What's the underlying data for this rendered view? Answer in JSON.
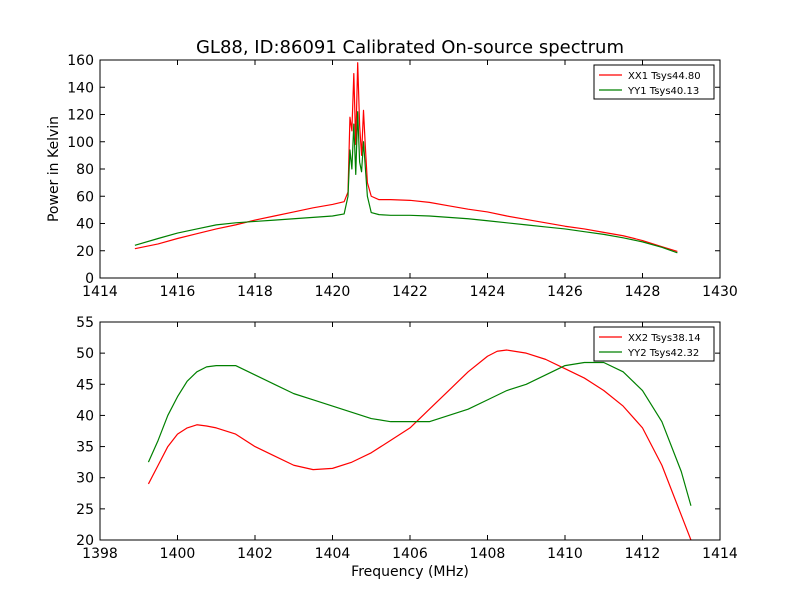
{
  "colors": {
    "xx": "#ff0000",
    "yy": "#008000",
    "axis": "#000000",
    "background": "#ffffff"
  },
  "chart_data": [
    {
      "type": "line",
      "title": "GL88, ID:86091 Calibrated On-source spectrum",
      "xlabel": "",
      "ylabel": "Power in Kelvin",
      "xlim": [
        1414,
        1430
      ],
      "ylim": [
        0,
        160
      ],
      "xticks": [
        "1414",
        "1416",
        "1418",
        "1420",
        "1422",
        "1424",
        "1426",
        "1428",
        "1430"
      ],
      "yticks": [
        "0",
        "20",
        "40",
        "60",
        "80",
        "100",
        "120",
        "140",
        "160"
      ],
      "grid": false,
      "legend_position": "top-right",
      "series": [
        {
          "name": "XX1 Tsys44.80",
          "color": "#ff0000",
          "points": [
            [
              1414.9,
              21.5
            ],
            [
              1415.5,
              25
            ],
            [
              1416,
              29
            ],
            [
              1416.5,
              32.5
            ],
            [
              1417,
              36
            ],
            [
              1417.5,
              39
            ],
            [
              1418,
              42.5
            ],
            [
              1418.5,
              45.5
            ],
            [
              1419,
              48.5
            ],
            [
              1419.5,
              51.5
            ],
            [
              1420,
              54
            ],
            [
              1420.3,
              56
            ],
            [
              1420.4,
              63
            ],
            [
              1420.45,
              118
            ],
            [
              1420.5,
              108
            ],
            [
              1420.55,
              150
            ],
            [
              1420.6,
              98
            ],
            [
              1420.65,
              158
            ],
            [
              1420.7,
              112
            ],
            [
              1420.75,
              90
            ],
            [
              1420.8,
              123
            ],
            [
              1420.85,
              95
            ],
            [
              1420.9,
              70
            ],
            [
              1421,
              60
            ],
            [
              1421.2,
              57.5
            ],
            [
              1421.5,
              57.5
            ],
            [
              1422,
              57
            ],
            [
              1422.5,
              55.5
            ],
            [
              1423,
              53
            ],
            [
              1423.5,
              50.5
            ],
            [
              1424,
              48.5
            ],
            [
              1424.5,
              45.5
            ],
            [
              1425,
              43
            ],
            [
              1425.5,
              40.5
            ],
            [
              1426,
              38
            ],
            [
              1426.5,
              36
            ],
            [
              1427,
              33.5
            ],
            [
              1427.5,
              31
            ],
            [
              1428,
              27.5
            ],
            [
              1428.5,
              23
            ],
            [
              1428.9,
              19.5
            ]
          ]
        },
        {
          "name": "YY1 Tsys40.13",
          "color": "#008000",
          "points": [
            [
              1414.9,
              24
            ],
            [
              1415.5,
              29
            ],
            [
              1416,
              33
            ],
            [
              1416.5,
              36
            ],
            [
              1417,
              39
            ],
            [
              1417.5,
              40.5
            ],
            [
              1418,
              41.5
            ],
            [
              1418.5,
              42.5
            ],
            [
              1419,
              43.5
            ],
            [
              1419.5,
              44.5
            ],
            [
              1420,
              45.5
            ],
            [
              1420.3,
              47
            ],
            [
              1420.4,
              60
            ],
            [
              1420.45,
              94
            ],
            [
              1420.5,
              80
            ],
            [
              1420.55,
              113
            ],
            [
              1420.6,
              76
            ],
            [
              1420.65,
              122
            ],
            [
              1420.7,
              85
            ],
            [
              1420.75,
              78
            ],
            [
              1420.8,
              100
            ],
            [
              1420.85,
              80
            ],
            [
              1420.9,
              60
            ],
            [
              1421,
              48
            ],
            [
              1421.2,
              46.5
            ],
            [
              1421.5,
              46
            ],
            [
              1422,
              46
            ],
            [
              1422.5,
              45.5
            ],
            [
              1423,
              44.5
            ],
            [
              1423.5,
              43.5
            ],
            [
              1424,
              42
            ],
            [
              1424.5,
              40.5
            ],
            [
              1425,
              39
            ],
            [
              1425.5,
              37.5
            ],
            [
              1426,
              36
            ],
            [
              1426.5,
              34
            ],
            [
              1427,
              32
            ],
            [
              1427.5,
              29.5
            ],
            [
              1428,
              26.5
            ],
            [
              1428.5,
              22.5
            ],
            [
              1428.9,
              18.5
            ]
          ]
        }
      ]
    },
    {
      "type": "line",
      "title": "",
      "xlabel": "Frequency (MHz)",
      "ylabel": "",
      "xlim": [
        1398,
        1414
      ],
      "ylim": [
        20,
        55
      ],
      "xticks": [
        "1398",
        "1400",
        "1402",
        "1404",
        "1406",
        "1408",
        "1410",
        "1412",
        "1414"
      ],
      "yticks": [
        "20",
        "25",
        "30",
        "35",
        "40",
        "45",
        "50",
        "55"
      ],
      "grid": false,
      "legend_position": "top-right",
      "series": [
        {
          "name": "XX2 Tsys38.14",
          "color": "#ff0000",
          "points": [
            [
              1399.25,
              29
            ],
            [
              1399.5,
              32
            ],
            [
              1399.75,
              35
            ],
            [
              1400,
              37
            ],
            [
              1400.25,
              38
            ],
            [
              1400.5,
              38.5
            ],
            [
              1400.75,
              38.3
            ],
            [
              1401,
              38
            ],
            [
              1401.5,
              37
            ],
            [
              1402,
              35
            ],
            [
              1402.5,
              33.5
            ],
            [
              1403,
              32
            ],
            [
              1403.5,
              31.3
            ],
            [
              1404,
              31.5
            ],
            [
              1404.5,
              32.5
            ],
            [
              1405,
              34
            ],
            [
              1405.5,
              36
            ],
            [
              1406,
              38
            ],
            [
              1406.5,
              41
            ],
            [
              1407,
              44
            ],
            [
              1407.5,
              47
            ],
            [
              1408,
              49.5
            ],
            [
              1408.25,
              50.3
            ],
            [
              1408.5,
              50.5
            ],
            [
              1409,
              50
            ],
            [
              1409.5,
              49
            ],
            [
              1410,
              47.5
            ],
            [
              1410.5,
              46
            ],
            [
              1411,
              44
            ],
            [
              1411.5,
              41.5
            ],
            [
              1412,
              38
            ],
            [
              1412.5,
              32
            ],
            [
              1413,
              24
            ],
            [
              1413.25,
              20
            ]
          ]
        },
        {
          "name": "YY2 Tsys42.32",
          "color": "#008000",
          "points": [
            [
              1399.25,
              32.5
            ],
            [
              1399.5,
              36
            ],
            [
              1399.75,
              40
            ],
            [
              1400,
              43
            ],
            [
              1400.25,
              45.5
            ],
            [
              1400.5,
              47
            ],
            [
              1400.75,
              47.8
            ],
            [
              1401,
              48
            ],
            [
              1401.5,
              48
            ],
            [
              1402,
              46.5
            ],
            [
              1402.5,
              45
            ],
            [
              1403,
              43.5
            ],
            [
              1403.5,
              42.5
            ],
            [
              1404,
              41.5
            ],
            [
              1404.5,
              40.5
            ],
            [
              1405,
              39.5
            ],
            [
              1405.5,
              39
            ],
            [
              1406,
              39
            ],
            [
              1406.5,
              39
            ],
            [
              1407,
              40
            ],
            [
              1407.5,
              41
            ],
            [
              1408,
              42.5
            ],
            [
              1408.5,
              44
            ],
            [
              1409,
              45
            ],
            [
              1409.5,
              46.5
            ],
            [
              1410,
              48
            ],
            [
              1410.5,
              48.5
            ],
            [
              1411,
              48.5
            ],
            [
              1411.5,
              47
            ],
            [
              1412,
              44
            ],
            [
              1412.5,
              39
            ],
            [
              1413,
              31
            ],
            [
              1413.25,
              25.5
            ]
          ]
        }
      ]
    }
  ]
}
